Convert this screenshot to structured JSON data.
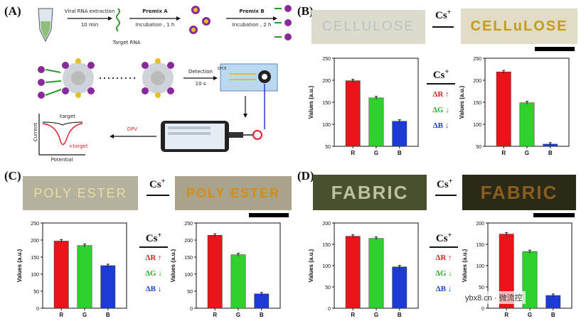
{
  "panels": {
    "A": "(A)",
    "B": "(B)",
    "C": "(C)",
    "D": "(D)"
  },
  "schematic": {
    "step1": "Viral RNA extraction",
    "step1_time": "10 min",
    "target_rna": "Target RNA",
    "premix_a": "Premix A",
    "premix_a_time": "Incubation , 1 h",
    "premix_b": "Premix B",
    "premix_b_time": "Incubation , 2 h",
    "detection": "Detection",
    "detection_time": "10 s",
    "spe": "SPCE",
    "dpv": "DPV",
    "minus_target": "-target",
    "plus_target": "+target",
    "current": "Current",
    "potential": "Potential"
  },
  "cs_label": "Cs",
  "cs_sup": "+",
  "legend": {
    "r": "ΔR ↑",
    "g": "ΔG ↓",
    "b": "ΔB ↓"
  },
  "photos": {
    "B_before": "CELLULOSE",
    "B_after": "CELLuLOSE",
    "C_before": "POLY ESTER",
    "C_after": "POLY ESTER",
    "D_before": "FABRIC",
    "D_after": "FABRIC"
  },
  "colors": {
    "r": "#e8141a",
    "g": "#2fd12f",
    "b": "#1a3bd6"
  },
  "watermark": "ybx8.cn · 微流控",
  "chart_data": [
    {
      "panel": "B",
      "state": "before",
      "type": "bar",
      "categories": [
        "R",
        "G",
        "B"
      ],
      "values": [
        199,
        160,
        107
      ],
      "ylabel": "Values (a.u.)",
      "ylim": [
        50,
        250
      ],
      "yticks": [
        50,
        100,
        150,
        200,
        250
      ]
    },
    {
      "panel": "B",
      "state": "after",
      "type": "bar",
      "categories": [
        "R",
        "G",
        "B"
      ],
      "values": [
        219,
        149,
        55
      ],
      "ylabel": "Values (a.u.)",
      "ylim": [
        50,
        250
      ],
      "yticks": [
        50,
        100,
        150,
        200,
        250
      ]
    },
    {
      "panel": "C",
      "state": "before",
      "type": "bar",
      "categories": [
        "R",
        "G",
        "B"
      ],
      "values": [
        197,
        184,
        125
      ],
      "ylabel": "Values (a.u.)",
      "ylim": [
        0,
        250
      ],
      "yticks": [
        0,
        50,
        100,
        150,
        200,
        250
      ]
    },
    {
      "panel": "C",
      "state": "after",
      "type": "bar",
      "categories": [
        "R",
        "G",
        "B"
      ],
      "values": [
        214,
        157,
        42
      ],
      "ylabel": "Values (a.u.)",
      "ylim": [
        0,
        250
      ],
      "yticks": [
        0,
        50,
        100,
        150,
        200,
        250
      ]
    },
    {
      "panel": "D",
      "state": "before",
      "type": "bar",
      "categories": [
        "R",
        "G",
        "B"
      ],
      "values": [
        169,
        164,
        97
      ],
      "ylabel": "Values (a.u.)",
      "ylim": [
        0,
        200
      ],
      "yticks": [
        0,
        50,
        100,
        150,
        200
      ]
    },
    {
      "panel": "D",
      "state": "after",
      "type": "bar",
      "categories": [
        "R",
        "G",
        "B"
      ],
      "values": [
        174,
        133,
        30
      ],
      "ylabel": "Values (a.u.)",
      "ylim": [
        0,
        200
      ],
      "yticks": [
        0,
        50,
        100,
        150,
        200
      ]
    }
  ]
}
